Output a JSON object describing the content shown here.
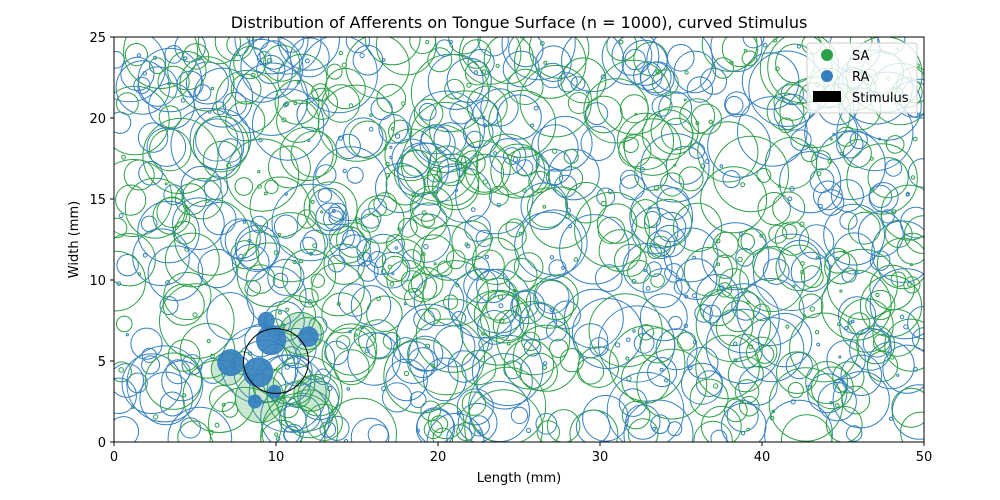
{
  "chart_data": {
    "type": "scatter",
    "title": "Distribution of Afferents on Tongue Surface (n = 1000), curved Stimulus",
    "xlabel": "Length (mm)",
    "ylabel": "Width (mm)",
    "xlim": [
      0,
      50
    ],
    "ylim": [
      0,
      25
    ],
    "xticks": [
      "0",
      "10",
      "20",
      "30",
      "40",
      "50"
    ],
    "yticks": [
      "0",
      "5",
      "10",
      "15",
      "20",
      "25"
    ],
    "grid": false,
    "legend_position": "top-right",
    "legend": [
      "SA",
      "RA",
      "Stimulus"
    ],
    "colors": {
      "SA": "#2ca048",
      "RA": "#3480bf",
      "Stimulus": "#000000"
    },
    "stimulus": {
      "x": 10,
      "y": 5,
      "r": 2
    },
    "active_afferents": [
      {
        "type": "SA",
        "x": 9,
        "y": 2.7,
        "r": 1.5
      },
      {
        "type": "SA",
        "x": 11.5,
        "y": 6.7,
        "r": 1.3
      },
      {
        "type": "SA",
        "x": 12.2,
        "y": 3,
        "r": 1.1
      },
      {
        "type": "SA",
        "x": 7,
        "y": 4.5,
        "r": 1.0
      },
      {
        "type": "RA",
        "x": 9.7,
        "y": 6.3,
        "r": 0.9
      },
      {
        "type": "RA",
        "x": 8.9,
        "y": 4.3,
        "r": 0.9
      },
      {
        "type": "RA",
        "x": 12,
        "y": 6.5,
        "r": 0.6
      },
      {
        "type": "RA",
        "x": 7.2,
        "y": 4.9,
        "r": 0.8
      },
      {
        "type": "RA",
        "x": 9.4,
        "y": 7.5,
        "r": 0.5
      },
      {
        "type": "RA",
        "x": 9.9,
        "y": 3.1,
        "r": 0.4
      },
      {
        "type": "RA",
        "x": 8.7,
        "y": 2.5,
        "r": 0.4
      }
    ]
  }
}
